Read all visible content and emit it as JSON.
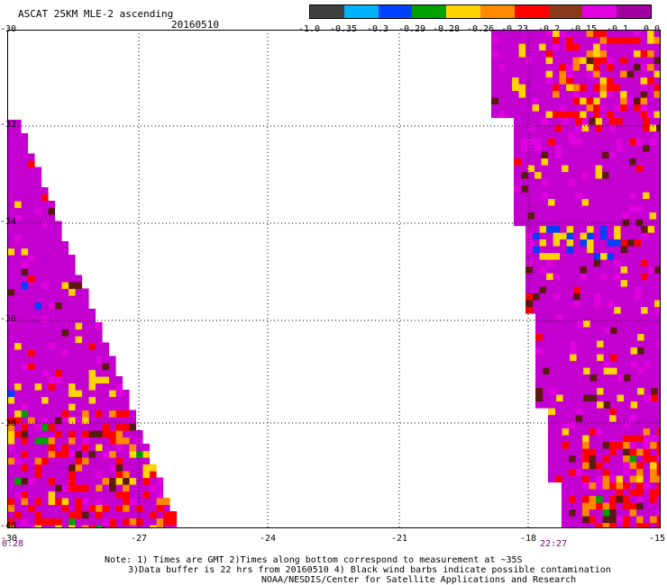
{
  "header": {
    "title": "ASCAT 25KM MLE-2 ascending",
    "date": "20160510"
  },
  "colorbar": {
    "colors": [
      "#404040",
      "#00b4ff",
      "#0040ff",
      "#00a000",
      "#ffd400",
      "#ff8a00",
      "#ff0000",
      "#8b3a1a",
      "#e000e0",
      "#a000a0"
    ],
    "labels": [
      "-1.0",
      "-0.35",
      "-0.3",
      "-0.29",
      "-0.28",
      "-0.26",
      "-0.23",
      "-0.2",
      "-0.15",
      "-0.1",
      "0.0"
    ]
  },
  "map": {
    "lat_labels": [
      "-30",
      "-32",
      "-34",
      "-36",
      "-38",
      "-40"
    ],
    "lon_labels": [
      "-30",
      "-27",
      "-24",
      "-21",
      "-18",
      "-15"
    ],
    "time_left": "0:28",
    "time_right": "22:27",
    "lat_range": [
      -40,
      -30
    ],
    "lon_range": [
      -30,
      -15
    ],
    "gridlines": true,
    "swath_colors": {
      "main": "#c400d0",
      "magenta": "#e000e0",
      "red": "#ff0000",
      "orange": "#ff8a00",
      "yellow": "#ffd400",
      "brown": "#5a1a10",
      "blue": "#0040ff",
      "lightblue": "#00b4ff",
      "green": "#00a000",
      "tan": "#a0603a"
    }
  },
  "notes": {
    "line1": "Note: 1) Times are GMT 2)Times along bottom correspond to measurement at ~35S",
    "line2": "3)Data buffer is 22 hrs from 20160510 4) Black wind barbs indicate possible contamination",
    "line3": "NOAA/NESDIS/Center for Satellite Applications and Research"
  }
}
